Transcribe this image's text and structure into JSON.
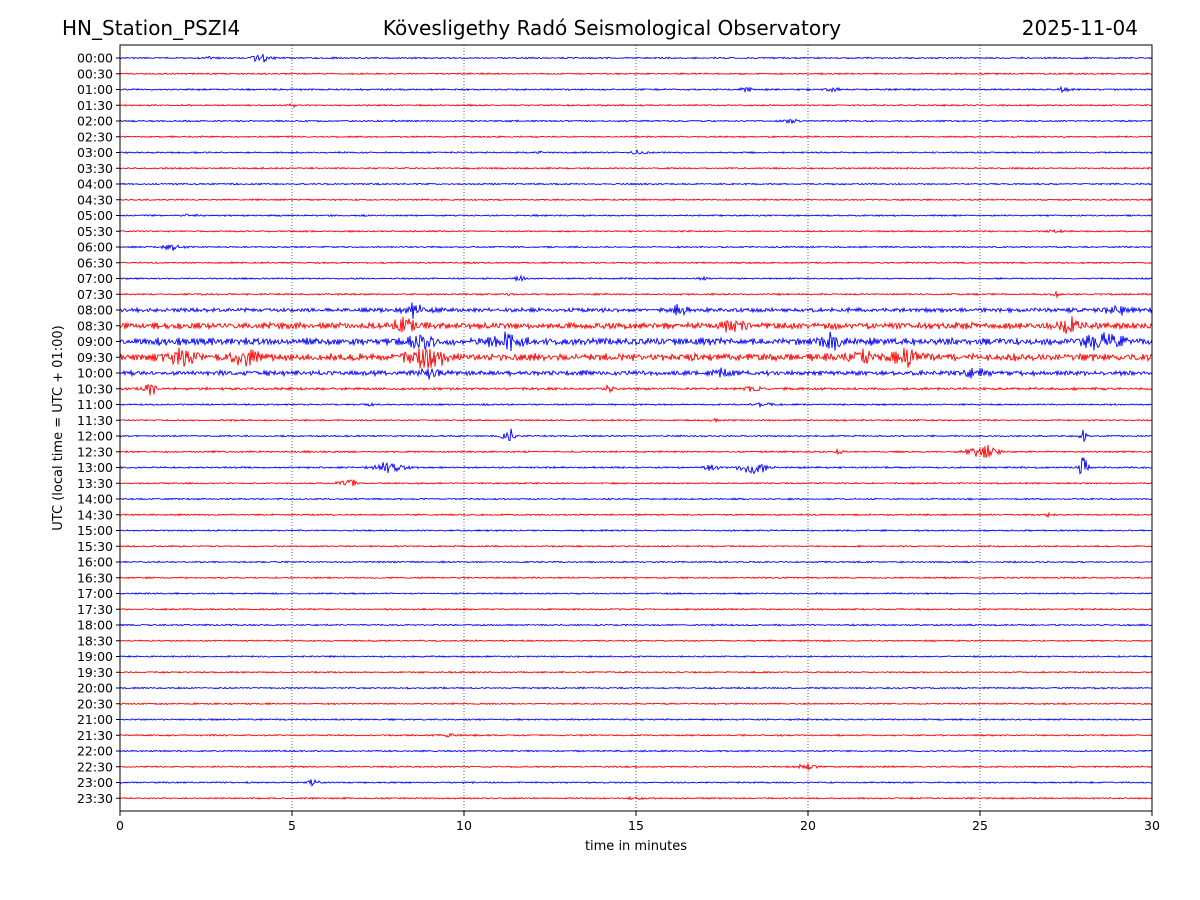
{
  "header": {
    "station": "HN_Station_PSZI4",
    "observatory": "Kövesligethy Radó Seismological Observatory",
    "date": "2025-11-04"
  },
  "chart_data": {
    "type": "seismogram",
    "xlabel": "time in minutes",
    "ylabel": "UTC (local time = UTC + 01:00)",
    "xlim": [
      0,
      30
    ],
    "xticks": [
      0,
      5,
      10,
      15,
      20,
      25,
      30
    ],
    "grid_x": [
      5,
      10,
      15,
      20,
      25
    ],
    "colors": {
      "even_trace": "#0000ff",
      "odd_trace": "#ff0000",
      "grid": "#000000"
    },
    "traces": [
      {
        "label": "00:00",
        "noise": 1.0,
        "events": [
          {
            "t": 4.1,
            "amp": 7,
            "dur": 0.35
          },
          {
            "t": 2.6,
            "amp": 2.5,
            "dur": 0.15
          }
        ]
      },
      {
        "label": "00:30",
        "noise": 1.0,
        "events": []
      },
      {
        "label": "01:00",
        "noise": 1.1,
        "events": [
          {
            "t": 27.4,
            "amp": 4,
            "dur": 0.2
          },
          {
            "t": 18.2,
            "amp": 2.5,
            "dur": 0.3
          },
          {
            "t": 20.7,
            "amp": 2.5,
            "dur": 0.3
          }
        ]
      },
      {
        "label": "01:30",
        "noise": 1.0,
        "events": [
          {
            "t": 5.0,
            "amp": 3,
            "dur": 0.15
          }
        ]
      },
      {
        "label": "02:00",
        "noise": 1.0,
        "events": [
          {
            "t": 19.5,
            "amp": 2.5,
            "dur": 0.3
          }
        ]
      },
      {
        "label": "02:30",
        "noise": 1.0,
        "events": []
      },
      {
        "label": "03:00",
        "noise": 1.0,
        "events": [
          {
            "t": 15.1,
            "amp": 3.5,
            "dur": 0.35
          },
          {
            "t": 12.2,
            "amp": 3,
            "dur": 0.1
          }
        ]
      },
      {
        "label": "03:30",
        "noise": 1.0,
        "events": []
      },
      {
        "label": "04:00",
        "noise": 1.0,
        "events": []
      },
      {
        "label": "04:30",
        "noise": 1.0,
        "events": []
      },
      {
        "label": "05:00",
        "noise": 1.0,
        "events": [
          {
            "t": 2.0,
            "amp": 2.5,
            "dur": 0.3
          }
        ]
      },
      {
        "label": "05:30",
        "noise": 1.0,
        "events": [
          {
            "t": 27.2,
            "amp": 3,
            "dur": 0.3
          }
        ]
      },
      {
        "label": "06:00",
        "noise": 1.0,
        "events": [
          {
            "t": 1.5,
            "amp": 5,
            "dur": 0.35
          }
        ]
      },
      {
        "label": "06:30",
        "noise": 1.0,
        "events": []
      },
      {
        "label": "07:00",
        "noise": 1.0,
        "events": [
          {
            "t": 11.6,
            "amp": 4,
            "dur": 0.25
          },
          {
            "t": 17.0,
            "amp": 2,
            "dur": 0.2
          }
        ]
      },
      {
        "label": "07:30",
        "noise": 1.1,
        "events": [
          {
            "t": 11.3,
            "amp": 3,
            "dur": 0.15
          },
          {
            "t": 27.2,
            "amp": 3,
            "dur": 0.15
          }
        ]
      },
      {
        "label": "08:00",
        "noise": 2.6,
        "events": [
          {
            "t": 8.5,
            "amp": 10,
            "dur": 0.5
          },
          {
            "t": 16.3,
            "amp": 6,
            "dur": 0.4
          },
          {
            "t": 29.0,
            "amp": 6,
            "dur": 0.5
          }
        ]
      },
      {
        "label": "08:30",
        "noise": 4.2,
        "events": [
          {
            "t": 8.3,
            "amp": 10,
            "dur": 0.5
          },
          {
            "t": 17.8,
            "amp": 9,
            "dur": 0.5
          },
          {
            "t": 27.6,
            "amp": 9,
            "dur": 0.5
          }
        ]
      },
      {
        "label": "09:00",
        "noise": 4.6,
        "events": [
          {
            "t": 11.2,
            "amp": 11,
            "dur": 0.6
          },
          {
            "t": 20.7,
            "amp": 10,
            "dur": 0.45
          },
          {
            "t": 28.5,
            "amp": 13,
            "dur": 0.7
          },
          {
            "t": 8.8,
            "amp": 10,
            "dur": 0.5
          }
        ]
      },
      {
        "label": "09:30",
        "noise": 4.6,
        "events": [
          {
            "t": 1.8,
            "amp": 13,
            "dur": 0.7
          },
          {
            "t": 3.6,
            "amp": 12,
            "dur": 0.6
          },
          {
            "t": 8.9,
            "amp": 16,
            "dur": 0.7
          },
          {
            "t": 22.9,
            "amp": 12,
            "dur": 0.6
          },
          {
            "t": 21.5,
            "amp": 9,
            "dur": 0.5
          }
        ]
      },
      {
        "label": "10:00",
        "noise": 3.0,
        "events": [
          {
            "t": 9.0,
            "amp": 9,
            "dur": 0.5
          },
          {
            "t": 24.8,
            "amp": 7,
            "dur": 0.4
          },
          {
            "t": 17.6,
            "amp": 5,
            "dur": 0.4
          }
        ]
      },
      {
        "label": "10:30",
        "noise": 1.6,
        "events": [
          {
            "t": 0.9,
            "amp": 10,
            "dur": 0.25
          },
          {
            "t": 18.4,
            "amp": 5,
            "dur": 0.3
          },
          {
            "t": 14.2,
            "amp": 4,
            "dur": 0.2
          }
        ]
      },
      {
        "label": "11:00",
        "noise": 1.1,
        "events": [
          {
            "t": 18.7,
            "amp": 3.5,
            "dur": 0.35
          },
          {
            "t": 7.3,
            "amp": 2.5,
            "dur": 0.2
          }
        ]
      },
      {
        "label": "11:30",
        "noise": 1.0,
        "events": [
          {
            "t": 17.3,
            "amp": 2.5,
            "dur": 0.2
          }
        ]
      },
      {
        "label": "12:00",
        "noise": 1.0,
        "events": [
          {
            "t": 11.3,
            "amp": 12,
            "dur": 0.25
          },
          {
            "t": 28.0,
            "amp": 14,
            "dur": 0.12
          }
        ]
      },
      {
        "label": "12:30",
        "noise": 1.1,
        "events": [
          {
            "t": 25.1,
            "amp": 11,
            "dur": 0.6
          },
          {
            "t": 20.9,
            "amp": 2.5,
            "dur": 0.2
          }
        ]
      },
      {
        "label": "13:00",
        "noise": 1.1,
        "events": [
          {
            "t": 7.8,
            "amp": 9,
            "dur": 0.6
          },
          {
            "t": 18.4,
            "amp": 13,
            "dur": 0.5
          },
          {
            "t": 28.0,
            "amp": 22,
            "dur": 0.15
          },
          {
            "t": 17.2,
            "amp": 4,
            "dur": 0.3
          }
        ]
      },
      {
        "label": "13:30",
        "noise": 1.0,
        "events": [
          {
            "t": 6.6,
            "amp": 10,
            "dur": 0.3
          }
        ]
      },
      {
        "label": "14:00",
        "noise": 1.0,
        "events": []
      },
      {
        "label": "14:30",
        "noise": 1.0,
        "events": [
          {
            "t": 27.0,
            "amp": 3,
            "dur": 0.2
          }
        ]
      },
      {
        "label": "15:00",
        "noise": 1.0,
        "events": []
      },
      {
        "label": "15:30",
        "noise": 1.0,
        "events": []
      },
      {
        "label": "16:00",
        "noise": 1.0,
        "events": []
      },
      {
        "label": "16:30",
        "noise": 1.0,
        "events": []
      },
      {
        "label": "17:00",
        "noise": 1.0,
        "events": []
      },
      {
        "label": "17:30",
        "noise": 1.0,
        "events": []
      },
      {
        "label": "18:00",
        "noise": 1.0,
        "events": []
      },
      {
        "label": "18:30",
        "noise": 1.0,
        "events": []
      },
      {
        "label": "19:00",
        "noise": 1.0,
        "events": []
      },
      {
        "label": "19:30",
        "noise": 1.0,
        "events": []
      },
      {
        "label": "20:00",
        "noise": 1.0,
        "events": []
      },
      {
        "label": "20:30",
        "noise": 1.0,
        "events": []
      },
      {
        "label": "21:00",
        "noise": 1.0,
        "events": []
      },
      {
        "label": "21:30",
        "noise": 1.0,
        "events": [
          {
            "t": 9.6,
            "amp": 2.5,
            "dur": 0.35
          }
        ]
      },
      {
        "label": "22:00",
        "noise": 1.0,
        "events": []
      },
      {
        "label": "22:30",
        "noise": 1.0,
        "events": [
          {
            "t": 20.0,
            "amp": 4,
            "dur": 0.4
          }
        ]
      },
      {
        "label": "23:00",
        "noise": 1.0,
        "events": [
          {
            "t": 5.6,
            "amp": 5,
            "dur": 0.25
          }
        ]
      },
      {
        "label": "23:30",
        "noise": 1.0,
        "events": [
          {
            "t": 15.0,
            "amp": 2,
            "dur": 0.3
          }
        ]
      }
    ]
  }
}
